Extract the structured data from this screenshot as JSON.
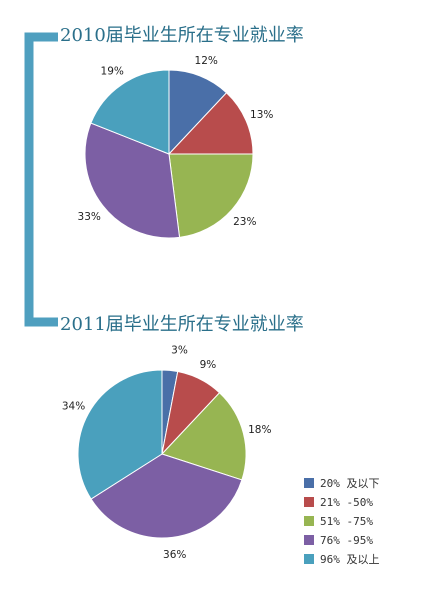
{
  "colors": {
    "bracket": "#4f9fbf",
    "slices": [
      "#4a6fa8",
      "#b84c4c",
      "#97b552",
      "#7c5fa4",
      "#4aa0bd"
    ]
  },
  "legend": {
    "position": "right",
    "items": [
      "20% 及以下",
      "21% -50%",
      "51% -75%",
      "76% -95%",
      "96% 及以上"
    ]
  },
  "chart_data": [
    {
      "type": "pie",
      "title": "2010届毕业生所在专业就业率",
      "categories": [
        "20% 及以下",
        "21% -50%",
        "51% -75%",
        "76% -95%",
        "96% 及以上"
      ],
      "values": [
        12,
        13,
        23,
        33,
        19
      ],
      "labels": [
        "12%",
        "13%",
        "23%",
        "33%",
        "19%"
      ]
    },
    {
      "type": "pie",
      "title": "2011届毕业生所在专业就业率",
      "categories": [
        "20% 及以下",
        "21% -50%",
        "51% -75%",
        "76% -95%",
        "96% 及以上"
      ],
      "values": [
        3,
        9,
        18,
        36,
        34
      ],
      "labels": [
        "3%",
        "9%",
        "18%",
        "36%",
        "34%"
      ]
    }
  ]
}
